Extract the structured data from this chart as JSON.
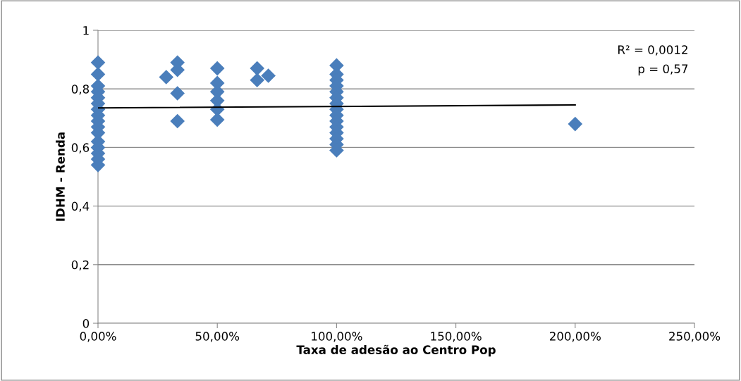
{
  "chart_data": {
    "type": "scatter",
    "xlabel": "Taxa de adesão ao Centro Pop",
    "ylabel": "IDHM - Renda",
    "xlim": [
      0,
      250
    ],
    "xticks": [
      {
        "value": 0,
        "label": "0,00%"
      },
      {
        "value": 50,
        "label": "50,00%"
      },
      {
        "value": 100,
        "label": "100,00%"
      },
      {
        "value": 150,
        "label": "150,00%"
      },
      {
        "value": 200,
        "label": "200,00%"
      },
      {
        "value": 250,
        "label": "250,00%"
      }
    ],
    "ylim": [
      0,
      1
    ],
    "yticks": [
      {
        "value": 0,
        "label": "0"
      },
      {
        "value": 0.2,
        "label": "0,2"
      },
      {
        "value": 0.4,
        "label": "0,4"
      },
      {
        "value": 0.6,
        "label": "0,6"
      },
      {
        "value": 0.8,
        "label": "0,8"
      },
      {
        "value": 1,
        "label": "1"
      }
    ],
    "grid": "y",
    "marker": "diamond",
    "annotations": [
      "R² = 0,0012",
      "p = 0,57"
    ],
    "series": [
      {
        "color": "#4a7ebb",
        "x": [
          0,
          0,
          0,
          0,
          0,
          0,
          0,
          0,
          0,
          0,
          0,
          0,
          0,
          0,
          0,
          0,
          28.6,
          33.3,
          33.3,
          33.3,
          33.3,
          50,
          50,
          50,
          50,
          50,
          50,
          66.7,
          66.7,
          71.4,
          100,
          100,
          100,
          100,
          100,
          100,
          100,
          100,
          100,
          100,
          100,
          100,
          100,
          100,
          100,
          200
        ],
        "values": [
          0.89,
          0.85,
          0.81,
          0.79,
          0.77,
          0.75,
          0.73,
          0.71,
          0.69,
          0.67,
          0.65,
          0.62,
          0.6,
          0.58,
          0.56,
          0.54,
          0.84,
          0.89,
          0.865,
          0.785,
          0.69,
          0.87,
          0.82,
          0.79,
          0.76,
          0.73,
          0.695,
          0.87,
          0.83,
          0.845,
          0.88,
          0.85,
          0.83,
          0.81,
          0.79,
          0.77,
          0.75,
          0.73,
          0.71,
          0.69,
          0.67,
          0.65,
          0.63,
          0.61,
          0.59,
          0.68
        ]
      },
      {
        "type": "line",
        "color": "#000000",
        "line_style": "solid",
        "marker": "none",
        "x": [
          0,
          200
        ],
        "values": [
          0.735,
          0.745
        ]
      }
    ]
  }
}
